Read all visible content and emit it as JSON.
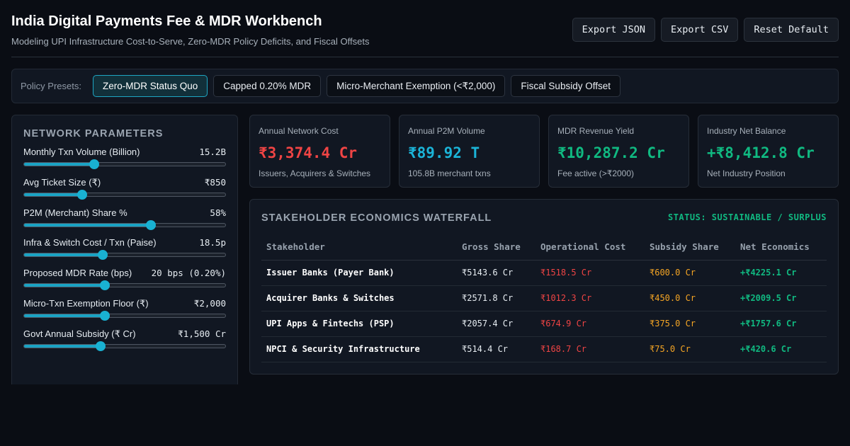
{
  "header": {
    "title": "India Digital Payments Fee & MDR Workbench",
    "subtitle": "Modeling UPI Infrastructure Cost-to-Serve, Zero-MDR Policy Deficits, and Fiscal Offsets",
    "buttons": {
      "export_json": "Export JSON",
      "export_csv": "Export CSV",
      "reset": "Reset Default"
    }
  },
  "presets": {
    "label": "Policy Presets:",
    "items": [
      "Zero-MDR Status Quo",
      "Capped 0.20% MDR",
      "Micro-Merchant Exemption (<₹2,000)",
      "Fiscal Subsidy Offset"
    ],
    "active_index": 0
  },
  "params": {
    "title": "NETWORK PARAMETERS",
    "items": [
      {
        "label": "Monthly Txn Volume (Billion)",
        "value": "15.2B",
        "fraction": 0.35
      },
      {
        "label": "Avg Ticket Size (₹)",
        "value": "₹850",
        "fraction": 0.29
      },
      {
        "label": "P2M (Merchant) Share %",
        "value": "58%",
        "fraction": 0.63
      },
      {
        "label": "Infra & Switch Cost / Txn (Paise)",
        "value": "18.5p",
        "fraction": 0.39
      },
      {
        "label": "Proposed MDR Rate (bps)",
        "value": "20 bps (0.20%)",
        "fraction": 0.4
      },
      {
        "label": "Micro-Txn Exemption Floor (₹)",
        "value": "₹2,000",
        "fraction": 0.4
      },
      {
        "label": "Govt Annual Subsidy (₹ Cr)",
        "value": "₹1,500 Cr",
        "fraction": 0.38
      }
    ]
  },
  "kpis": [
    {
      "label": "Annual Network Cost",
      "value": "₹3,374.4 Cr",
      "sub": "Issuers, Acquirers & Switches",
      "color": "#ef4444"
    },
    {
      "label": "Annual P2M Volume",
      "value": "₹89.92 T",
      "sub": "105.8B merchant txns",
      "color": "#1bb4d8"
    },
    {
      "label": "MDR Revenue Yield",
      "value": "₹10,287.2 Cr",
      "sub": "Fee active (>₹2000)",
      "color": "#10b981"
    },
    {
      "label": "Industry Net Balance",
      "value": "+₹8,412.8 Cr",
      "sub": "Net Industry Position",
      "color": "#10b981"
    }
  ],
  "waterfall": {
    "title": "STAKEHOLDER ECONOMICS WATERFALL",
    "status": "STATUS: SUSTAINABLE / SURPLUS",
    "columns": [
      "Stakeholder",
      "Gross Share",
      "Operational Cost",
      "Subsidy Share",
      "Net Economics"
    ],
    "rows": [
      {
        "name": "Issuer Banks (Payer Bank)",
        "gross": "₹5143.6 Cr",
        "op": "₹1518.5 Cr",
        "subsidy": "₹600.0 Cr",
        "net": "+₹4225.1 Cr"
      },
      {
        "name": "Acquirer Banks & Switches",
        "gross": "₹2571.8 Cr",
        "op": "₹1012.3 Cr",
        "subsidy": "₹450.0 Cr",
        "net": "+₹2009.5 Cr"
      },
      {
        "name": "UPI Apps & Fintechs (PSP)",
        "gross": "₹2057.4 Cr",
        "op": "₹674.9 Cr",
        "subsidy": "₹375.0 Cr",
        "net": "+₹1757.6 Cr"
      },
      {
        "name": "NPCI & Security Infrastructure",
        "gross": "₹514.4 Cr",
        "op": "₹168.7 Cr",
        "subsidy": "₹75.0 Cr",
        "net": "+₹420.6 Cr"
      }
    ]
  }
}
